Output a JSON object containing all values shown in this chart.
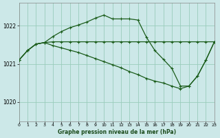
{
  "title": "Graphe pression niveau de la mer (hPa)",
  "bg_color": "#cce8e8",
  "grid_color": "#99ccbb",
  "line_color": "#1a5c1a",
  "xlim": [
    0,
    23
  ],
  "ylim": [
    1019.5,
    1022.6
  ],
  "yticks": [
    1020,
    1021,
    1022
  ],
  "xticks": [
    0,
    1,
    2,
    3,
    4,
    5,
    6,
    7,
    8,
    9,
    10,
    11,
    12,
    13,
    14,
    15,
    16,
    17,
    18,
    19,
    20,
    21,
    22,
    23
  ],
  "series_flat": {
    "x": [
      0,
      1,
      2,
      3,
      4,
      5,
      6,
      7,
      8,
      9,
      10,
      11,
      12,
      13,
      14,
      15,
      16,
      17,
      18,
      19,
      20,
      21,
      22,
      23
    ],
    "y": [
      1021.1,
      1021.35,
      1021.52,
      1021.56,
      1021.58,
      1021.58,
      1021.58,
      1021.58,
      1021.58,
      1021.58,
      1021.58,
      1021.58,
      1021.58,
      1021.58,
      1021.58,
      1021.58,
      1021.58,
      1021.58,
      1021.58,
      1021.58,
      1021.58,
      1021.58,
      1021.58,
      1021.58
    ]
  },
  "series_peak": {
    "x": [
      0,
      1,
      2,
      3,
      4,
      5,
      6,
      7,
      8,
      9,
      10,
      11,
      12,
      13,
      14,
      15,
      16,
      17,
      18,
      19,
      20,
      21,
      22,
      23
    ],
    "y": [
      1021.1,
      1021.35,
      1021.52,
      1021.56,
      1021.72,
      1021.85,
      1021.95,
      1022.02,
      1022.1,
      1022.2,
      1022.28,
      1022.18,
      1022.18,
      1022.18,
      1022.15,
      1021.7,
      1021.35,
      1021.12,
      1020.88,
      1020.42,
      1020.42,
      1020.68,
      1021.1,
      1021.58
    ]
  },
  "series_decline": {
    "x": [
      0,
      1,
      2,
      3,
      4,
      5,
      6,
      7,
      8,
      9,
      10,
      11,
      12,
      13,
      14,
      15,
      16,
      17,
      18,
      19,
      20,
      21,
      22,
      23
    ],
    "y": [
      1021.1,
      1021.35,
      1021.52,
      1021.56,
      1021.48,
      1021.42,
      1021.36,
      1021.3,
      1021.22,
      1021.14,
      1021.06,
      1020.98,
      1020.9,
      1020.8,
      1020.72,
      1020.62,
      1020.55,
      1020.5,
      1020.42,
      1020.35,
      1020.42,
      1020.68,
      1021.1,
      1021.58
    ]
  }
}
